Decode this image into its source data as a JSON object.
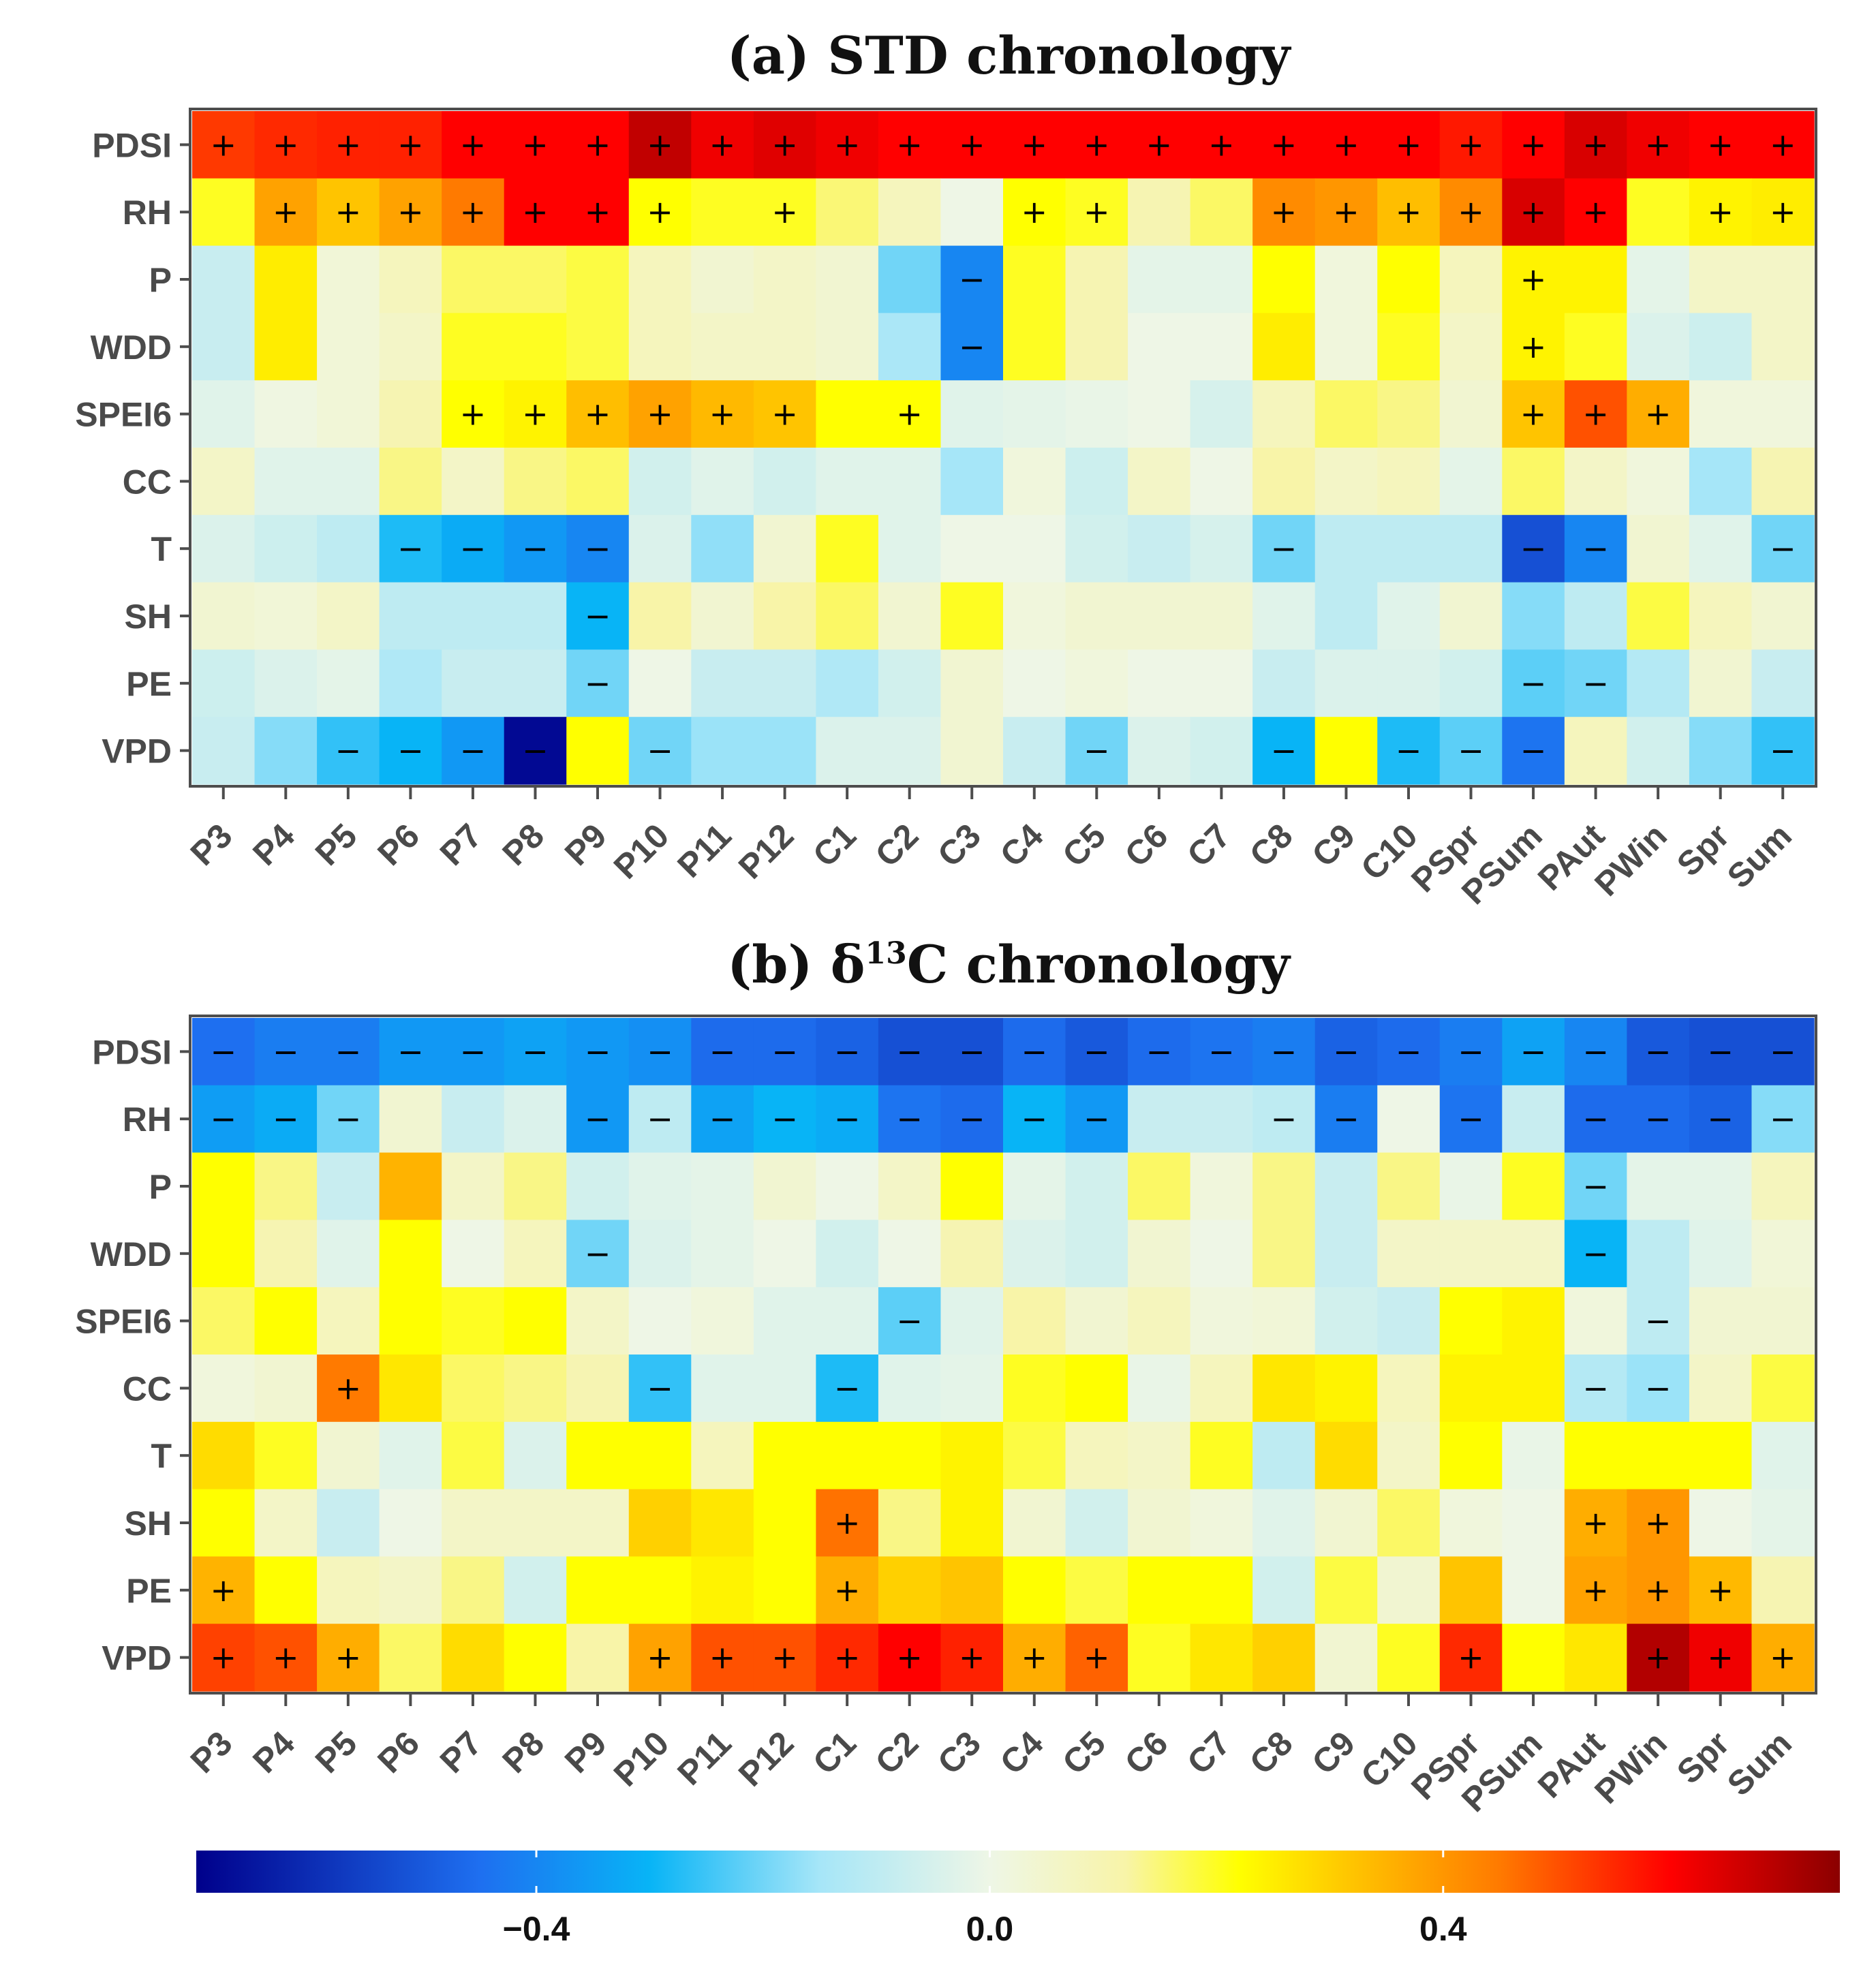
{
  "chart_data": [
    {
      "type": "heatmap",
      "title": {
        "prefix": "(a) STD chronology",
        "sup": "",
        "suffix": ""
      },
      "x": [
        "P3",
        "P4",
        "P5",
        "P6",
        "P7",
        "P8",
        "P9",
        "P10",
        "P11",
        "P12",
        "C1",
        "C2",
        "C3",
        "C4",
        "C5",
        "C6",
        "C7",
        "C8",
        "C9",
        "C10",
        "PSpr",
        "PSum",
        "PAut",
        "PWin",
        "Spr",
        "Sum"
      ],
      "y": [
        "PDSI",
        "RH",
        "P",
        "WDD",
        "SPEI6",
        "CC",
        "T",
        "SH",
        "PE",
        "VPD"
      ],
      "values": [
        [
          0.53,
          0.55,
          0.56,
          0.56,
          0.6,
          0.6,
          0.6,
          0.68,
          0.62,
          0.64,
          0.62,
          0.6,
          0.6,
          0.6,
          0.6,
          0.6,
          0.6,
          0.6,
          0.6,
          0.6,
          0.57,
          0.6,
          0.65,
          0.62,
          0.6,
          0.6
        ],
        [
          0.2,
          0.38,
          0.32,
          0.38,
          0.45,
          0.6,
          0.6,
          0.22,
          0.2,
          0.2,
          0.15,
          0.08,
          0.0,
          0.22,
          0.2,
          0.1,
          0.16,
          0.42,
          0.4,
          0.33,
          0.42,
          0.65,
          0.6,
          0.2,
          0.24,
          0.25
        ],
        [
          -0.08,
          0.25,
          0.03,
          0.08,
          0.16,
          0.16,
          0.18,
          0.08,
          0.04,
          0.06,
          0.04,
          -0.2,
          -0.4,
          0.2,
          0.1,
          -0.02,
          -0.02,
          0.22,
          0.02,
          0.22,
          0.08,
          0.24,
          0.24,
          -0.02,
          0.06,
          0.06
        ],
        [
          -0.08,
          0.25,
          0.03,
          0.06,
          0.2,
          0.2,
          0.18,
          0.08,
          0.06,
          0.06,
          0.04,
          -0.14,
          -0.4,
          0.2,
          0.1,
          0.0,
          0.0,
          0.25,
          0.02,
          0.2,
          0.06,
          0.24,
          0.2,
          -0.04,
          -0.07,
          0.06
        ],
        [
          -0.03,
          0.01,
          0.03,
          0.1,
          0.22,
          0.24,
          0.33,
          0.38,
          0.34,
          0.32,
          0.22,
          0.22,
          -0.03,
          -0.02,
          -0.01,
          0.0,
          -0.05,
          0.08,
          0.16,
          0.14,
          0.04,
          0.32,
          0.5,
          0.36,
          0.02,
          0.02
        ],
        [
          0.06,
          -0.03,
          -0.03,
          0.14,
          0.06,
          0.14,
          0.16,
          -0.06,
          -0.03,
          -0.06,
          -0.03,
          -0.03,
          -0.15,
          0.02,
          -0.07,
          0.06,
          0.0,
          0.12,
          0.06,
          0.08,
          -0.02,
          0.16,
          0.06,
          0.02,
          -0.15,
          0.1
        ],
        [
          -0.04,
          -0.07,
          -0.1,
          -0.28,
          -0.32,
          -0.36,
          -0.4,
          -0.04,
          -0.17,
          0.04,
          0.2,
          -0.03,
          0.0,
          0.0,
          -0.06,
          -0.08,
          -0.05,
          -0.2,
          -0.1,
          -0.1,
          -0.1,
          -0.52,
          -0.4,
          0.04,
          -0.03,
          -0.2
        ],
        [
          0.04,
          0.03,
          0.06,
          -0.1,
          -0.1,
          -0.1,
          -0.3,
          0.12,
          0.04,
          0.12,
          0.16,
          0.04,
          0.2,
          0.02,
          0.04,
          0.04,
          0.04,
          -0.03,
          -0.1,
          -0.03,
          0.04,
          -0.18,
          -0.1,
          0.18,
          0.08,
          0.04
        ],
        [
          -0.07,
          -0.04,
          -0.02,
          -0.13,
          -0.08,
          -0.08,
          -0.2,
          0.0,
          -0.08,
          -0.08,
          -0.13,
          -0.06,
          0.04,
          0.0,
          0.02,
          0.0,
          0.0,
          -0.08,
          -0.04,
          -0.04,
          -0.06,
          -0.22,
          -0.2,
          -0.12,
          0.04,
          -0.08
        ],
        [
          -0.08,
          -0.18,
          -0.26,
          -0.3,
          -0.36,
          -0.68,
          0.22,
          -0.2,
          -0.16,
          -0.16,
          -0.04,
          -0.04,
          0.04,
          -0.08,
          -0.2,
          -0.04,
          -0.06,
          -0.3,
          0.22,
          -0.28,
          -0.22,
          -0.44,
          0.08,
          -0.06,
          -0.18,
          -0.26
        ]
      ],
      "signs": [
        [
          "+",
          "+",
          "+",
          "+",
          "+",
          "+",
          "+",
          "+",
          "+",
          "+",
          "+",
          "+",
          "+",
          "+",
          "+",
          "+",
          "+",
          "+",
          "+",
          "+",
          "+",
          "+",
          "+",
          "+",
          "+",
          "+"
        ],
        [
          "",
          "+",
          "+",
          "+",
          "+",
          "+",
          "+",
          "+",
          "",
          "+",
          "",
          "",
          "",
          "+",
          "+",
          "",
          "",
          "+",
          "+",
          "+",
          "+",
          "+",
          "+",
          "",
          "+",
          "+"
        ],
        [
          "",
          "",
          "",
          "",
          "",
          "",
          "",
          "",
          "",
          "",
          "",
          "",
          "−",
          "",
          "",
          "",
          "",
          "",
          "",
          "",
          "",
          "+",
          "",
          "",
          "",
          ""
        ],
        [
          "",
          "",
          "",
          "",
          "",
          "",
          "",
          "",
          "",
          "",
          "",
          "",
          "−",
          "",
          "",
          "",
          "",
          "",
          "",
          "",
          "",
          "+",
          "",
          "",
          "",
          ""
        ],
        [
          "",
          "",
          "",
          "",
          "+",
          "+",
          "+",
          "+",
          "+",
          "+",
          "",
          "+",
          "",
          "",
          "",
          "",
          "",
          "",
          "",
          "",
          "",
          "+",
          "+",
          "+",
          "",
          ""
        ],
        [
          "",
          "",
          "",
          "",
          "",
          "",
          "",
          "",
          "",
          "",
          "",
          "",
          "",
          "",
          "",
          "",
          "",
          "",
          "",
          "",
          "",
          "",
          "",
          "",
          "",
          ""
        ],
        [
          "",
          "",
          "",
          "−",
          "−",
          "−",
          "−",
          "",
          "",
          "",
          "",
          "",
          "",
          "",
          "",
          "",
          "",
          "−",
          "",
          "",
          "",
          "−",
          "−",
          "",
          "",
          "−"
        ],
        [
          "",
          "",
          "",
          "",
          "",
          "",
          "−",
          "",
          "",
          "",
          "",
          "",
          "",
          "",
          "",
          "",
          "",
          "",
          "",
          "",
          "",
          "",
          "",
          "",
          "",
          ""
        ],
        [
          "",
          "",
          "",
          "",
          "",
          "",
          "−",
          "",
          "",
          "",
          "",
          "",
          "",
          "",
          "",
          "",
          "",
          "",
          "",
          "",
          "",
          "−",
          "−",
          "",
          "",
          ""
        ],
        [
          "",
          "",
          "−",
          "−",
          "−",
          "−",
          "",
          "−",
          "",
          "",
          "",
          "",
          "",
          "",
          "−",
          "",
          "",
          "−",
          "",
          "−",
          "−",
          "−",
          "",
          "",
          "",
          "−"
        ]
      ]
    },
    {
      "type": "heatmap",
      "title": {
        "prefix": "(b) δ",
        "sup": "13",
        "suffix": "C chronology"
      },
      "x": [
        "P3",
        "P4",
        "P5",
        "P6",
        "P7",
        "P8",
        "P9",
        "P10",
        "P11",
        "P12",
        "C1",
        "C2",
        "C3",
        "C4",
        "C5",
        "C6",
        "C7",
        "C8",
        "C9",
        "C10",
        "PSpr",
        "PSum",
        "PAut",
        "PWin",
        "Spr",
        "Sum"
      ],
      "y": [
        "PDSI",
        "RH",
        "P",
        "WDD",
        "SPEI6",
        "CC",
        "T",
        "SH",
        "PE",
        "VPD"
      ],
      "values": [
        [
          -0.45,
          -0.42,
          -0.42,
          -0.36,
          -0.36,
          -0.34,
          -0.36,
          -0.38,
          -0.46,
          -0.46,
          -0.48,
          -0.52,
          -0.52,
          -0.46,
          -0.5,
          -0.46,
          -0.44,
          -0.42,
          -0.48,
          -0.46,
          -0.42,
          -0.34,
          -0.4,
          -0.5,
          -0.52,
          -0.52
        ],
        [
          -0.35,
          -0.32,
          -0.2,
          0.04,
          -0.08,
          -0.04,
          -0.36,
          -0.1,
          -0.34,
          -0.3,
          -0.32,
          -0.44,
          -0.46,
          -0.3,
          -0.36,
          -0.08,
          -0.08,
          -0.1,
          -0.42,
          0.0,
          -0.44,
          -0.08,
          -0.46,
          -0.46,
          -0.48,
          -0.18
        ],
        [
          0.22,
          0.14,
          -0.08,
          0.35,
          0.06,
          0.14,
          -0.06,
          -0.03,
          -0.02,
          0.04,
          0.0,
          0.06,
          0.22,
          -0.02,
          -0.06,
          0.16,
          0.02,
          0.14,
          -0.08,
          0.14,
          -0.01,
          0.2,
          -0.2,
          -0.02,
          -0.02,
          0.08
        ],
        [
          0.22,
          0.1,
          -0.03,
          0.22,
          0.0,
          0.08,
          -0.2,
          -0.04,
          -0.02,
          0.0,
          -0.06,
          0.0,
          0.1,
          -0.04,
          -0.06,
          0.04,
          0.0,
          0.14,
          -0.08,
          0.06,
          0.06,
          0.06,
          -0.3,
          -0.1,
          -0.03,
          0.03
        ],
        [
          0.16,
          0.22,
          0.08,
          0.22,
          0.2,
          0.22,
          0.06,
          0.0,
          0.02,
          -0.03,
          -0.03,
          -0.22,
          -0.03,
          0.12,
          0.04,
          0.08,
          0.02,
          0.03,
          -0.06,
          -0.08,
          0.22,
          0.24,
          0.02,
          -0.1,
          0.04,
          0.04
        ],
        [
          0.02,
          0.04,
          0.45,
          0.26,
          0.16,
          0.14,
          0.1,
          -0.26,
          -0.03,
          -0.03,
          -0.28,
          -0.03,
          -0.02,
          0.2,
          0.22,
          -0.01,
          0.08,
          0.26,
          0.24,
          0.08,
          0.24,
          0.24,
          -0.12,
          -0.16,
          0.06,
          0.18
        ],
        [
          0.28,
          0.2,
          0.04,
          -0.03,
          0.18,
          -0.04,
          0.22,
          0.22,
          0.08,
          0.22,
          0.22,
          0.22,
          0.24,
          0.18,
          0.08,
          0.06,
          0.2,
          -0.1,
          0.28,
          0.06,
          0.22,
          -0.01,
          0.22,
          0.22,
          0.22,
          -0.03
        ],
        [
          0.22,
          0.06,
          -0.08,
          0.0,
          0.06,
          0.06,
          0.06,
          0.3,
          0.26,
          0.22,
          0.46,
          0.14,
          0.24,
          0.04,
          -0.06,
          0.04,
          0.02,
          -0.03,
          0.04,
          0.16,
          0.02,
          0.0,
          0.36,
          0.4,
          0.0,
          -0.02
        ],
        [
          0.35,
          0.22,
          0.08,
          0.06,
          0.14,
          -0.06,
          0.22,
          0.22,
          0.24,
          0.22,
          0.36,
          0.3,
          0.32,
          0.22,
          0.18,
          0.22,
          0.22,
          -0.06,
          0.18,
          0.04,
          0.32,
          0.0,
          0.38,
          0.4,
          0.34,
          0.1
        ],
        [
          0.52,
          0.5,
          0.36,
          0.16,
          0.28,
          0.22,
          0.12,
          0.38,
          0.5,
          0.5,
          0.55,
          0.6,
          0.56,
          0.36,
          0.48,
          0.2,
          0.26,
          0.3,
          0.04,
          0.2,
          0.55,
          0.22,
          0.26,
          0.7,
          0.62,
          0.36
        ]
      ],
      "signs": [
        [
          "−",
          "−",
          "−",
          "−",
          "−",
          "−",
          "−",
          "−",
          "−",
          "−",
          "−",
          "−",
          "−",
          "−",
          "−",
          "−",
          "−",
          "−",
          "−",
          "−",
          "−",
          "−",
          "−",
          "−",
          "−",
          "−"
        ],
        [
          "−",
          "−",
          "−",
          "",
          "",
          "",
          "−",
          "−",
          "−",
          "−",
          "−",
          "−",
          "−",
          "−",
          "−",
          "",
          "",
          "−",
          "−",
          "",
          "−",
          "",
          "−",
          "−",
          "−",
          "−"
        ],
        [
          "",
          "",
          "",
          "",
          "",
          "",
          "",
          "",
          "",
          "",
          "",
          "",
          "",
          "",
          "",
          "",
          "",
          "",
          "",
          "",
          "",
          "",
          "−",
          "",
          "",
          ""
        ],
        [
          "",
          "",
          "",
          "",
          "",
          "",
          "−",
          "",
          "",
          "",
          "",
          "",
          "",
          "",
          "",
          "",
          "",
          "",
          "",
          "",
          "",
          "",
          "−",
          "",
          "",
          ""
        ],
        [
          "",
          "",
          "",
          "",
          "",
          "",
          "",
          "",
          "",
          "",
          "",
          "−",
          "",
          "",
          "",
          "",
          "",
          "",
          "",
          "",
          "",
          "",
          "",
          "−",
          "",
          ""
        ],
        [
          "",
          "",
          "+",
          "",
          "",
          "",
          "",
          "−",
          "",
          "",
          "−",
          "",
          "",
          "",
          "",
          "",
          "",
          "",
          "",
          "",
          "",
          "",
          "−",
          "−",
          "",
          ""
        ],
        [
          "",
          "",
          "",
          "",
          "",
          "",
          "",
          "",
          "",
          "",
          "",
          "",
          "",
          "",
          "",
          "",
          "",
          "",
          "",
          "",
          "",
          "",
          "",
          "",
          "",
          ""
        ],
        [
          "",
          "",
          "",
          "",
          "",
          "",
          "",
          "",
          "",
          "",
          "+",
          "",
          "",
          "",
          "",
          "",
          "",
          "",
          "",
          "",
          "",
          "",
          "+",
          "+",
          "",
          ""
        ],
        [
          "+",
          "",
          "",
          "",
          "",
          "",
          "",
          "",
          "",
          "",
          "+",
          "",
          "",
          "",
          "",
          "",
          "",
          "",
          "",
          "",
          "",
          "",
          "+",
          "+",
          "+",
          ""
        ],
        [
          "+",
          "+",
          "+",
          "",
          "",
          "",
          "",
          "+",
          "+",
          "+",
          "+",
          "+",
          "+",
          "+",
          "+",
          "",
          "",
          "",
          "",
          "",
          "+",
          "",
          "",
          "+",
          "+",
          "+"
        ]
      ]
    }
  ],
  "colorbar": {
    "min": -0.7,
    "max": 0.75,
    "ticks": [
      -0.4,
      0.0,
      0.4
    ],
    "tick_labels": [
      "−0.4",
      "0.0",
      "0.4"
    ],
    "stops": [
      {
        "v": -0.7,
        "c": "#00008b"
      },
      {
        "v": -0.45,
        "c": "#1e6ff0"
      },
      {
        "v": -0.3,
        "c": "#08b4f6"
      },
      {
        "v": -0.15,
        "c": "#a6e6f8"
      },
      {
        "v": 0.0,
        "c": "#eef6e6"
      },
      {
        "v": 0.12,
        "c": "#f8f4a8"
      },
      {
        "v": 0.22,
        "c": "#ffff00"
      },
      {
        "v": 0.32,
        "c": "#ffc400"
      },
      {
        "v": 0.45,
        "c": "#ff7a00"
      },
      {
        "v": 0.6,
        "c": "#ff0000"
      },
      {
        "v": 0.75,
        "c": "#8b0000"
      }
    ]
  }
}
